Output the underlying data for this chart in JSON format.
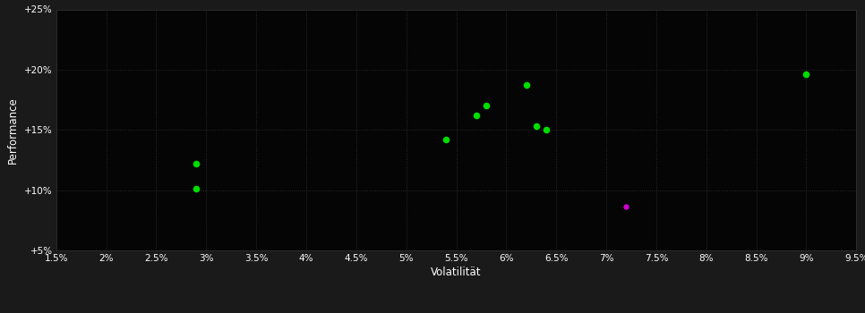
{
  "background_color": "#1a1a1a",
  "plot_bg_color": "#050505",
  "grid_color": "#333333",
  "xlabel": "Volatilität",
  "ylabel": "Performance",
  "xlim": [
    0.015,
    0.095
  ],
  "ylim": [
    0.05,
    0.25
  ],
  "xticks": [
    0.015,
    0.02,
    0.025,
    0.03,
    0.035,
    0.04,
    0.045,
    0.05,
    0.055,
    0.06,
    0.065,
    0.07,
    0.075,
    0.08,
    0.085,
    0.09,
    0.095
  ],
  "yticks": [
    0.05,
    0.1,
    0.15,
    0.2,
    0.25
  ],
  "ytick_labels": [
    "+5%",
    "+10%",
    "+15%",
    "+20%",
    "+25%"
  ],
  "xtick_labels": [
    "1.5%",
    "2%",
    "2.5%",
    "3%",
    "3.5%",
    "4%",
    "4.5%",
    "5%",
    "5.5%",
    "6%",
    "6.5%",
    "7%",
    "7.5%",
    "8%",
    "8.5%",
    "9%",
    "9.5%"
  ],
  "green_points": [
    [
      0.029,
      0.122
    ],
    [
      0.029,
      0.101
    ],
    [
      0.054,
      0.142
    ],
    [
      0.057,
      0.162
    ],
    [
      0.058,
      0.17
    ],
    [
      0.062,
      0.187
    ],
    [
      0.063,
      0.153
    ],
    [
      0.064,
      0.15
    ],
    [
      0.09,
      0.196
    ]
  ],
  "magenta_points": [
    [
      0.072,
      0.086
    ]
  ],
  "point_color_green": "#00dd00",
  "point_color_magenta": "#cc00cc",
  "marker_size": 30,
  "text_color": "#ffffff",
  "tick_fontsize": 7.5,
  "label_fontsize": 8.5
}
